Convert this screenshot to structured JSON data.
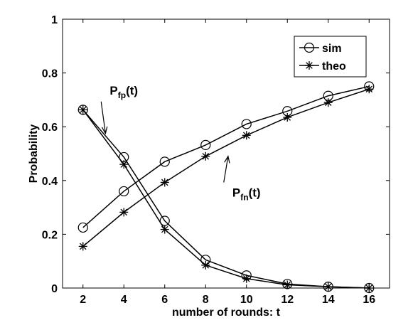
{
  "chart_data": {
    "type": "line",
    "xlabel": "number of rounds: t",
    "ylabel": "Probability",
    "xlim": [
      1,
      17
    ],
    "ylim": [
      0,
      1
    ],
    "xticks": [
      2,
      4,
      6,
      8,
      10,
      12,
      14,
      16
    ],
    "yticks": [
      0,
      0.2,
      0.4,
      0.6,
      0.8,
      1
    ],
    "ytick_labels": [
      "0",
      "0.2",
      "0.4",
      "0.6",
      "0.8",
      "1"
    ],
    "grid": false,
    "legend_position": "top-right",
    "x": [
      2,
      4,
      6,
      8,
      10,
      12,
      14,
      16
    ],
    "series": [
      {
        "name": "sim",
        "marker": "circle",
        "curve": "fn",
        "values": [
          0.225,
          0.36,
          0.47,
          0.532,
          0.61,
          0.658,
          0.715,
          0.75
        ]
      },
      {
        "name": "theo",
        "marker": "star",
        "curve": "fn",
        "values": [
          0.155,
          0.282,
          0.393,
          0.49,
          0.568,
          0.635,
          0.69,
          0.74
        ]
      },
      {
        "name": "sim",
        "marker": "circle",
        "curve": "fp",
        "values": [
          0.663,
          0.487,
          0.25,
          0.105,
          0.047,
          0.015,
          0.005,
          0.0
        ]
      },
      {
        "name": "theo",
        "marker": "star",
        "curve": "fp",
        "values": [
          0.663,
          0.46,
          0.218,
          0.085,
          0.035,
          0.012,
          0.005,
          0.0
        ]
      }
    ],
    "legend": [
      {
        "label": "sim",
        "marker": "circle"
      },
      {
        "label": "theo",
        "marker": "star"
      }
    ],
    "annotations": [
      {
        "main": "P",
        "sub": "fp",
        "suffix": "(t)",
        "text_at": [
          4.0,
          0.72
        ],
        "arrow_to": [
          3.1,
          0.575
        ]
      },
      {
        "main": "P",
        "sub": "fn",
        "suffix": "(t)",
        "text_at": [
          10.0,
          0.34
        ],
        "arrow_to": [
          9.1,
          0.49
        ]
      }
    ]
  }
}
